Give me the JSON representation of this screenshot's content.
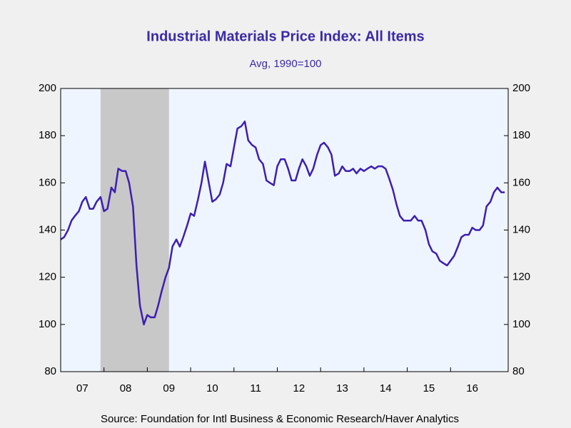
{
  "chart_data": {
    "type": "line",
    "title": "Industrial Materials Price Index: All Items",
    "subtitle": "Avg, 1990=100",
    "source": "Source:  Foundation for Intl Business & Economic Research/Haver Analytics",
    "x": [
      2007.0,
      2007.08,
      2007.17,
      2007.25,
      2007.33,
      2007.42,
      2007.5,
      2007.58,
      2007.67,
      2007.75,
      2007.83,
      2007.92,
      2008.0,
      2008.08,
      2008.17,
      2008.25,
      2008.33,
      2008.42,
      2008.5,
      2008.58,
      2008.67,
      2008.75,
      2008.83,
      2008.92,
      2009.0,
      2009.08,
      2009.17,
      2009.25,
      2009.33,
      2009.42,
      2009.5,
      2009.58,
      2009.67,
      2009.75,
      2009.83,
      2009.92,
      2010.0,
      2010.08,
      2010.17,
      2010.25,
      2010.33,
      2010.42,
      2010.5,
      2010.58,
      2010.67,
      2010.75,
      2010.83,
      2010.92,
      2011.0,
      2011.08,
      2011.17,
      2011.25,
      2011.33,
      2011.42,
      2011.5,
      2011.58,
      2011.67,
      2011.75,
      2011.83,
      2011.92,
      2012.0,
      2012.08,
      2012.17,
      2012.25,
      2012.33,
      2012.42,
      2012.5,
      2012.58,
      2012.67,
      2012.75,
      2012.83,
      2012.92,
      2013.0,
      2013.08,
      2013.17,
      2013.25,
      2013.33,
      2013.42,
      2013.5,
      2013.58,
      2013.67,
      2013.75,
      2013.83,
      2013.92,
      2014.0,
      2014.08,
      2014.17,
      2014.25,
      2014.33,
      2014.42,
      2014.5,
      2014.58,
      2014.67,
      2014.75,
      2014.83,
      2014.92,
      2015.0,
      2015.08,
      2015.17,
      2015.25,
      2015.33,
      2015.42,
      2015.5,
      2015.58,
      2015.67,
      2015.75,
      2015.83,
      2015.92,
      2016.0,
      2016.08,
      2016.17,
      2016.25,
      2016.33,
      2016.42,
      2016.5,
      2016.58,
      2016.67,
      2016.75,
      2016.83,
      2016.92,
      2017.0,
      2017.08,
      2017.17,
      2017.25
    ],
    "series": [
      {
        "name": "Industrial Materials Price Index",
        "color": "#3d1fb0",
        "values": [
          136,
          137,
          140,
          144,
          146,
          148,
          152,
          154,
          149,
          149,
          152,
          154,
          148,
          149,
          158,
          156,
          166,
          165,
          165,
          160,
          150,
          125,
          108,
          100,
          104,
          103,
          103,
          108,
          114,
          120,
          124,
          133,
          136,
          133,
          137,
          142,
          147,
          146,
          153,
          160,
          169,
          160,
          152,
          153,
          155,
          160,
          168,
          167,
          175,
          183,
          184,
          186,
          178,
          176,
          175,
          170,
          168,
          161,
          160,
          159,
          167,
          170,
          170,
          166,
          161,
          161,
          166,
          170,
          167,
          163,
          166,
          172,
          176,
          177,
          175,
          172,
          163,
          164,
          167,
          165,
          165,
          166,
          164,
          166,
          165,
          166,
          167,
          166,
          167,
          167,
          166,
          162,
          157,
          151,
          146,
          144,
          144,
          144,
          146,
          144,
          144,
          140,
          134,
          131,
          130,
          127,
          126,
          125,
          127,
          129,
          133,
          137,
          138,
          138,
          141,
          140,
          140,
          142,
          150,
          152,
          156,
          158,
          156,
          156
        ]
      }
    ],
    "xlim": [
      2007,
      2017.33
    ],
    "xticks": [
      {
        "value": 2007,
        "label": "07"
      },
      {
        "value": 2008,
        "label": "08"
      },
      {
        "value": 2009,
        "label": "09"
      },
      {
        "value": 2010,
        "label": "10"
      },
      {
        "value": 2011,
        "label": "11"
      },
      {
        "value": 2012,
        "label": "12"
      },
      {
        "value": 2013,
        "label": "13"
      },
      {
        "value": 2014,
        "label": "14"
      },
      {
        "value": 2015,
        "label": "15"
      },
      {
        "value": 2016,
        "label": "16"
      }
    ],
    "ylim": [
      80,
      200
    ],
    "yticks": [
      80,
      100,
      120,
      140,
      160,
      180,
      200
    ],
    "y2lim": [
      80,
      200
    ],
    "y2ticks": [
      80,
      100,
      120,
      140,
      160,
      180,
      200
    ],
    "shaded": [
      2007.92,
      2009.5
    ],
    "shade_color": "#c8c8c8",
    "plot_background": "#eef5ff"
  }
}
